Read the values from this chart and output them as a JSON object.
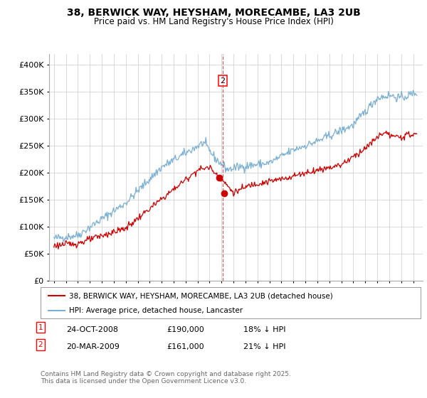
{
  "title1": "38, BERWICK WAY, HEYSHAM, MORECAMBE, LA3 2UB",
  "title2": "Price paid vs. HM Land Registry's House Price Index (HPI)",
  "legend_property": "38, BERWICK WAY, HEYSHAM, MORECAMBE, LA3 2UB (detached house)",
  "legend_hpi": "HPI: Average price, detached house, Lancaster",
  "footnote": "Contains HM Land Registry data © Crown copyright and database right 2025.\nThis data is licensed under the Open Government Licence v3.0.",
  "sale1_date": "24-OCT-2008",
  "sale1_price": "£190,000",
  "sale1_note": "18% ↓ HPI",
  "sale2_date": "20-MAR-2009",
  "sale2_price": "£161,000",
  "sale2_note": "21% ↓ HPI",
  "sale1_x": 2008.81,
  "sale1_y": 190000,
  "sale2_x": 2009.22,
  "sale2_y": 161000,
  "vline_x": 2009.1,
  "ylim": [
    0,
    420000
  ],
  "xlim_left": 1994.6,
  "xlim_right": 2025.8,
  "property_color": "#cc0000",
  "hpi_color": "#7aafd4",
  "vline_color": "#cc4444",
  "background_color": "#ffffff",
  "grid_color": "#cccccc"
}
